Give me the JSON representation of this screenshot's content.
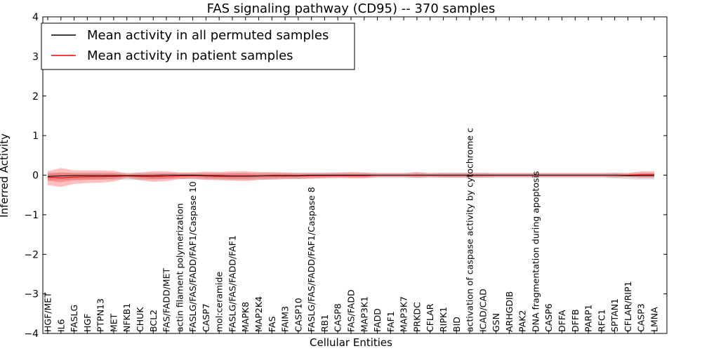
{
  "chart_data": {
    "type": "line",
    "title": "FAS signaling pathway (CD95) -- 370 samples",
    "xlabel": "Cellular Entities",
    "ylabel": "Inferred Activity",
    "ylim": [
      -4,
      4
    ],
    "yticks": [
      4,
      3,
      2,
      1,
      0,
      -1,
      -2,
      -3,
      -4
    ],
    "ytick_labels": [
      "4",
      "3",
      "2",
      "1",
      "0",
      "−1",
      "−2",
      "−3",
      "−4"
    ],
    "legend_position": "top-left",
    "categories": [
      "HGF/MET",
      "IL6",
      "FASLG",
      "HGF",
      "PTPN13",
      "MET",
      "NFKB1",
      "CHUK",
      "BCL2",
      "FAS/FADD/MET",
      "actin filament polymerization",
      "FASLG/FAS/FADD/FAF1/Caspase 10",
      "CASP7",
      "mol:ceramide",
      "FASLG/FAS/FADD/FAF1",
      "MAPK8",
      "MAP2K4",
      "FAS",
      "FAIM3",
      "CASP10",
      "FASLG/FAS/FADD/FAF1/Caspase 8",
      "RB1",
      "CASP8",
      "FAS/FADD",
      "MAP3K1",
      "FADD",
      "FAF1",
      "MAP3K7",
      "PRKDC",
      "CFLAR",
      "RIPK1",
      "BID",
      "activation of caspase activity by cytochrome c",
      "ICAD/CAD",
      "GSN",
      "ARHGDIB",
      "PAK2",
      "DNA fragmentation during apoptosis",
      "CASP6",
      "DFFA",
      "DFFB",
      "PARP1",
      "RFC1",
      "SPTAN1",
      "CFLAR/RIP1",
      "CASP3",
      "LMNA"
    ],
    "series": [
      {
        "name": "Mean activity in all permuted samples",
        "color": "#000000",
        "values": [
          -0.03,
          -0.02,
          -0.01,
          -0.01,
          -0.01,
          -0.01,
          -0.01,
          -0.01,
          -0.01,
          0.0,
          0.0,
          0.0,
          -0.01,
          -0.01,
          -0.02,
          -0.02,
          -0.02,
          -0.01,
          -0.01,
          -0.01,
          0.0,
          0.0,
          0.0,
          0.0,
          0.0,
          0.0,
          0.0,
          0.0,
          0.0,
          0.0,
          0.0,
          0.0,
          0.0,
          0.0,
          0.0,
          0.0,
          0.0,
          0.0,
          0.0,
          0.0,
          0.0,
          0.0,
          0.0,
          0.0,
          -0.01,
          -0.01,
          -0.01
        ],
        "band_upper": [
          0.07,
          0.07,
          0.07,
          0.07,
          0.07,
          0.07,
          0.06,
          0.06,
          0.06,
          0.06,
          0.06,
          0.06,
          0.06,
          0.06,
          0.06,
          0.06,
          0.06,
          0.06,
          0.06,
          0.06,
          0.06,
          0.06,
          0.06,
          0.06,
          0.06,
          0.06,
          0.06,
          0.06,
          0.06,
          0.06,
          0.06,
          0.06,
          0.06,
          0.06,
          0.06,
          0.06,
          0.06,
          0.06,
          0.06,
          0.06,
          0.06,
          0.06,
          0.06,
          0.06,
          0.06,
          0.06,
          0.06
        ],
        "band_lower": [
          -0.13,
          -0.12,
          -0.11,
          -0.11,
          -0.11,
          -0.11,
          -0.12,
          -0.12,
          -0.11,
          -0.1,
          -0.1,
          -0.1,
          -0.11,
          -0.11,
          -0.12,
          -0.12,
          -0.12,
          -0.11,
          -0.1,
          -0.09,
          -0.08,
          -0.07,
          -0.07,
          -0.07,
          -0.07,
          -0.07,
          -0.07,
          -0.07,
          -0.07,
          -0.07,
          -0.07,
          -0.07,
          -0.07,
          -0.07,
          -0.07,
          -0.07,
          -0.07,
          -0.07,
          -0.07,
          -0.07,
          -0.07,
          -0.07,
          -0.07,
          -0.08,
          -0.1,
          -0.11,
          -0.11
        ]
      },
      {
        "name": "Mean activity in patient samples",
        "color": "#ff0000",
        "values": [
          -0.05,
          -0.07,
          -0.05,
          -0.04,
          -0.04,
          -0.03,
          -0.02,
          -0.03,
          -0.04,
          -0.03,
          -0.02,
          -0.01,
          -0.02,
          -0.03,
          -0.03,
          -0.03,
          -0.02,
          -0.02,
          -0.02,
          -0.02,
          -0.01,
          -0.01,
          -0.01,
          -0.01,
          -0.01,
          0.0,
          0.0,
          0.0,
          0.0,
          0.0,
          0.0,
          0.0,
          0.0,
          0.0,
          0.0,
          0.0,
          0.0,
          0.0,
          0.0,
          0.0,
          0.0,
          0.0,
          0.0,
          0.0,
          0.0,
          0.01,
          0.01
        ],
        "band_outer_upper": [
          0.1,
          0.18,
          0.12,
          0.12,
          0.12,
          0.11,
          0.04,
          0.07,
          0.1,
          0.1,
          0.07,
          0.07,
          0.09,
          0.08,
          0.1,
          0.1,
          0.08,
          0.08,
          0.07,
          0.06,
          0.06,
          0.06,
          0.07,
          0.08,
          0.07,
          0.05,
          0.05,
          0.05,
          0.08,
          0.05,
          0.06,
          0.06,
          0.06,
          0.06,
          0.05,
          0.05,
          0.05,
          0.05,
          0.05,
          0.05,
          0.05,
          0.05,
          0.05,
          0.06,
          0.05,
          0.1,
          0.1
        ],
        "band_outer_lower": [
          -0.25,
          -0.3,
          -0.22,
          -0.2,
          -0.19,
          -0.16,
          -0.07,
          -0.13,
          -0.17,
          -0.15,
          -0.1,
          -0.09,
          -0.12,
          -0.13,
          -0.14,
          -0.15,
          -0.12,
          -0.11,
          -0.1,
          -0.1,
          -0.09,
          -0.08,
          -0.07,
          -0.08,
          -0.08,
          -0.05,
          -0.05,
          -0.05,
          -0.07,
          -0.05,
          -0.06,
          -0.06,
          -0.06,
          -0.06,
          -0.05,
          -0.05,
          -0.05,
          -0.05,
          -0.05,
          -0.05,
          -0.05,
          -0.05,
          -0.05,
          -0.06,
          -0.05,
          -0.07,
          -0.07
        ],
        "band_inner_upper": [
          0.03,
          0.06,
          0.04,
          0.04,
          0.04,
          0.04,
          0.01,
          0.02,
          0.03,
          0.04,
          0.03,
          0.03,
          0.03,
          0.03,
          0.04,
          0.04,
          0.03,
          0.03,
          0.03,
          0.02,
          0.02,
          0.02,
          0.03,
          0.03,
          0.03,
          0.02,
          0.02,
          0.02,
          0.03,
          0.02,
          0.02,
          0.02,
          0.02,
          0.02,
          0.02,
          0.02,
          0.02,
          0.02,
          0.02,
          0.02,
          0.02,
          0.02,
          0.02,
          0.02,
          0.02,
          0.04,
          0.04
        ],
        "band_inner_lower": [
          -0.14,
          -0.18,
          -0.13,
          -0.12,
          -0.11,
          -0.09,
          -0.04,
          -0.08,
          -0.1,
          -0.09,
          -0.06,
          -0.05,
          -0.07,
          -0.08,
          -0.09,
          -0.09,
          -0.07,
          -0.07,
          -0.06,
          -0.06,
          -0.05,
          -0.05,
          -0.04,
          -0.05,
          -0.05,
          -0.03,
          -0.03,
          -0.03,
          -0.04,
          -0.03,
          -0.04,
          -0.04,
          -0.04,
          -0.04,
          -0.03,
          -0.03,
          -0.03,
          -0.03,
          -0.03,
          -0.03,
          -0.03,
          -0.03,
          -0.03,
          -0.04,
          -0.03,
          -0.03,
          -0.03
        ]
      }
    ]
  }
}
